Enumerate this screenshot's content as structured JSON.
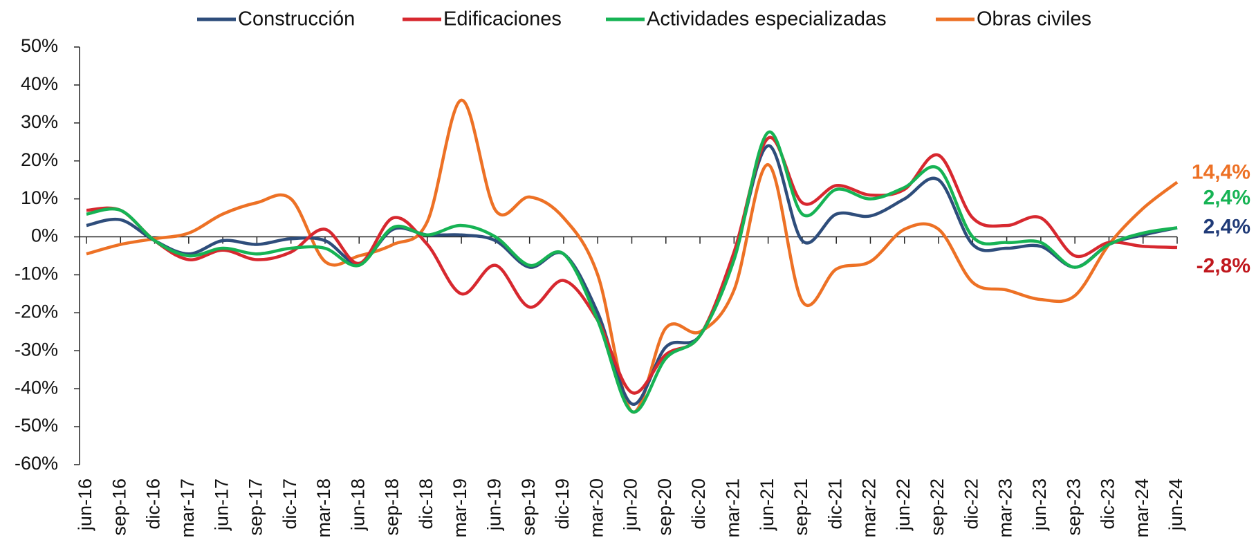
{
  "chart_data": {
    "type": "line",
    "categories": [
      "jun-16",
      "sep-16",
      "dic-16",
      "mar-17",
      "jun-17",
      "sep-17",
      "dic-17",
      "mar-18",
      "jun-18",
      "sep-18",
      "dic-18",
      "mar-19",
      "jun-19",
      "sep-19",
      "dic-19",
      "mar-20",
      "jun-20",
      "sep-20",
      "dic-20",
      "mar-21",
      "jun-21",
      "sep-21",
      "dic-21",
      "mar-22",
      "jun-22",
      "sep-22",
      "dic-22",
      "mar-23",
      "jun-23",
      "sep-23",
      "dic-23",
      "mar-24",
      "jun-24"
    ],
    "series": [
      {
        "name": "Construcción",
        "color": "#2e4d7b",
        "label_color": "#1f3a77",
        "end_label": "2,4%",
        "values": [
          3,
          4.5,
          -1,
          -4.5,
          -1,
          -2,
          -0.5,
          -1,
          -7,
          2,
          0.5,
          0.5,
          -1,
          -8,
          -4.5,
          -20,
          -44,
          -29,
          -26,
          -5,
          24,
          -1,
          6,
          5.5,
          10,
          15,
          -2,
          -3,
          -2.5,
          -8,
          -2,
          0.5,
          2.4
        ]
      },
      {
        "name": "Edificaciones",
        "color": "#d7282f",
        "label_color": "#c0171d",
        "end_label": "-2,8%",
        "values": [
          7,
          7,
          -1,
          -6,
          -3.5,
          -6,
          -4,
          2,
          -7,
          5,
          -2,
          -15,
          -7.5,
          -18.5,
          -11.5,
          -22,
          -41,
          -31,
          -26,
          -4,
          26,
          9,
          13.5,
          11,
          12.5,
          21.5,
          5,
          3,
          5,
          -5,
          -1.5,
          -2.5,
          -2.8
        ]
      },
      {
        "name": "Actividades especializadas",
        "color": "#16b354",
        "label_color": "#16b354",
        "end_label": "2,4%",
        "values": [
          6,
          7,
          -1,
          -5,
          -3,
          -4.5,
          -3,
          -3,
          -7.5,
          2.5,
          0.5,
          3,
          0,
          -7.5,
          -4.5,
          -22,
          -46,
          -32,
          -26,
          -6,
          27.5,
          6,
          12.5,
          10,
          13,
          18,
          0,
          -1.5,
          -1.5,
          -8,
          -2,
          1,
          2.4
        ]
      },
      {
        "name": "Obras civiles",
        "color": "#ed7125",
        "label_color": "#ed7125",
        "end_label": "14,4%",
        "values": [
          -4.5,
          -2,
          -0.5,
          1,
          6,
          9,
          10,
          -6.5,
          -5,
          -2,
          4,
          36,
          7,
          10.5,
          5,
          -10,
          -46,
          -24,
          -25,
          -14,
          19,
          -17,
          -8.5,
          -6.5,
          2,
          2,
          -12,
          -14,
          -16.5,
          -15.5,
          -2,
          7.5,
          14.4
        ]
      }
    ],
    "ylim": [
      -60,
      50
    ],
    "yticks": [
      {
        "value": -60,
        "label": "-60%"
      },
      {
        "value": -50,
        "label": "-50%"
      },
      {
        "value": -40,
        "label": "-40%"
      },
      {
        "value": -30,
        "label": "-30%"
      },
      {
        "value": -20,
        "label": "-20%"
      },
      {
        "value": -10,
        "label": "-10%"
      },
      {
        "value": 0,
        "label": "0%"
      },
      {
        "value": 10,
        "label": "10%"
      },
      {
        "value": 20,
        "label": "20%"
      },
      {
        "value": 30,
        "label": "30%"
      },
      {
        "value": 40,
        "label": "40%"
      },
      {
        "value": 50,
        "label": "50%"
      }
    ],
    "legend": "top",
    "grid": false
  }
}
